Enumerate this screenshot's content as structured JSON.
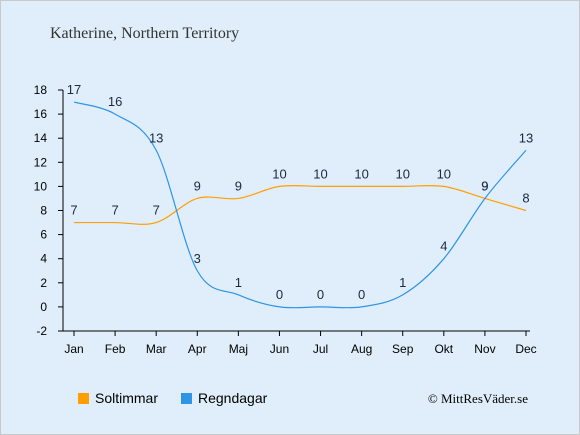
{
  "colors": {
    "background": "#dfeefa",
    "frame": "#c9c9c9",
    "axis": "#000000",
    "sun": "#ff9e00",
    "rain": "#2e94e6"
  },
  "chart_data": {
    "type": "line",
    "title": "Katherine, Northern Territory",
    "categories": [
      "Jan",
      "Feb",
      "Mar",
      "Apr",
      "Maj",
      "Jun",
      "Jul",
      "Aug",
      "Sep",
      "Okt",
      "Nov",
      "Dec"
    ],
    "series": [
      {
        "name": "Soltimmar",
        "color": "#ff9e00",
        "values": [
          7,
          7,
          7,
          9,
          9,
          10,
          10,
          10,
          10,
          10,
          9,
          8
        ]
      },
      {
        "name": "Regndagar",
        "color": "#2e94e6",
        "values": [
          17,
          16,
          13,
          3,
          1,
          0,
          0,
          0,
          1,
          4,
          9,
          13
        ]
      }
    ],
    "yticks": [
      -2,
      0,
      2,
      4,
      6,
      8,
      10,
      12,
      14,
      16,
      18
    ],
    "ylim": [
      -2,
      18
    ],
    "grid": false,
    "legend": "bottom-left"
  },
  "copyright": "© MittResVäder.se"
}
